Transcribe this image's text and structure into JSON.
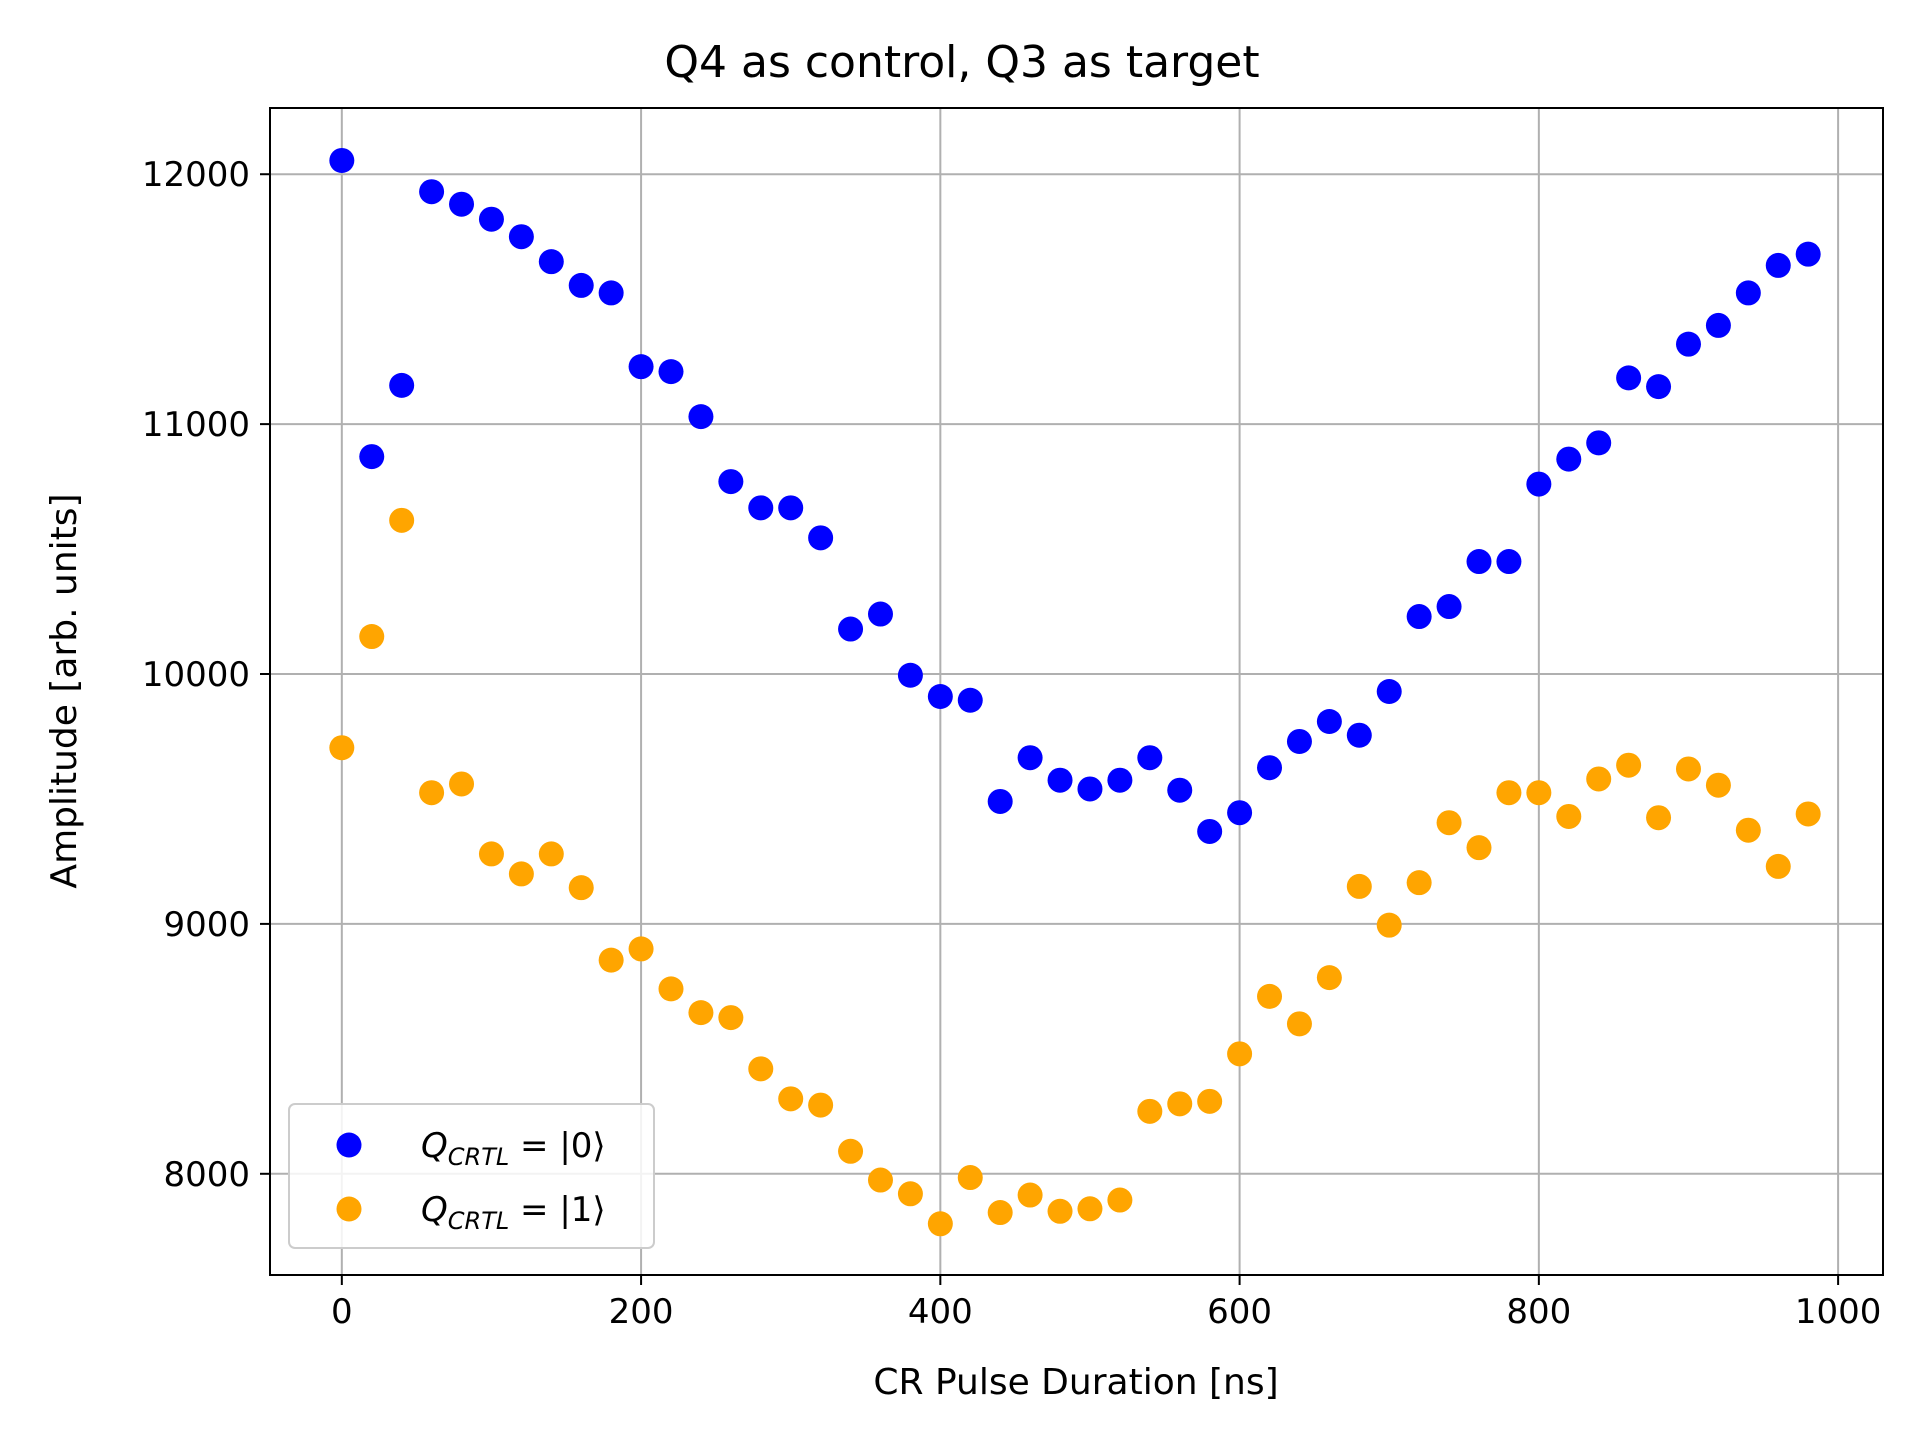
{
  "chart_data": {
    "type": "scatter",
    "title": "Q4 as control, Q3 as target",
    "xlabel": "CR Pulse Duration [ns]",
    "ylabel": "Amplitude [arb. units]",
    "xlim": [
      -48,
      1030
    ],
    "ylim": [
      7595,
      12265
    ],
    "xticks": [
      0,
      200,
      400,
      600,
      800,
      1000
    ],
    "yticks": [
      8000,
      9000,
      10000,
      11000,
      12000
    ],
    "grid": true,
    "legend_position": "lower-left",
    "series": [
      {
        "name": "Q_CRTL = |0⟩",
        "legend": {
          "q": "Q",
          "sub": "CRTL",
          "rest": " = |0⟩"
        },
        "color": "#0000ff",
        "x": [
          0,
          20,
          40,
          60,
          80,
          100,
          120,
          140,
          160,
          180,
          200,
          220,
          240,
          260,
          280,
          300,
          320,
          340,
          360,
          380,
          400,
          420,
          440,
          460,
          480,
          500,
          520,
          540,
          560,
          580,
          600,
          620,
          640,
          660,
          680,
          700,
          720,
          740,
          760,
          780,
          800,
          820,
          840,
          860,
          880,
          900,
          920,
          940,
          960,
          980
        ],
        "y": [
          12055,
          10870,
          11155,
          11930,
          11880,
          11820,
          11750,
          11650,
          11555,
          11525,
          11230,
          11210,
          11030,
          10770,
          10665,
          10665,
          10545,
          10180,
          10240,
          9995,
          9910,
          9895,
          9490,
          9665,
          9575,
          9540,
          9575,
          9665,
          9535,
          9370,
          9445,
          9625,
          9730,
          9810,
          9755,
          9930,
          10230,
          10270,
          10450,
          10450,
          10760,
          10860,
          10925,
          11185,
          11150,
          11320,
          11395,
          11525,
          11635,
          11680
        ]
      },
      {
        "name": "Q_CRTL = |1⟩",
        "legend": {
          "q": "Q",
          "sub": "CRTL",
          "rest": " = |1⟩"
        },
        "color": "#ffa500",
        "x": [
          0,
          20,
          40,
          60,
          80,
          100,
          120,
          140,
          160,
          180,
          200,
          220,
          240,
          260,
          280,
          300,
          320,
          340,
          360,
          380,
          400,
          420,
          440,
          460,
          480,
          500,
          520,
          540,
          560,
          580,
          600,
          620,
          640,
          660,
          680,
          700,
          720,
          740,
          760,
          780,
          800,
          820,
          840,
          860,
          880,
          900,
          920,
          940,
          960,
          980
        ],
        "y": [
          9705,
          10150,
          10615,
          9525,
          9560,
          9280,
          9200,
          9280,
          9145,
          8855,
          8900,
          8740,
          8645,
          8625,
          8420,
          8300,
          8275,
          8090,
          7975,
          7920,
          7800,
          7985,
          7845,
          7915,
          7850,
          7860,
          7895,
          8250,
          8280,
          8290,
          8480,
          8710,
          8600,
          8785,
          9150,
          8995,
          9165,
          9405,
          9305,
          9525,
          9525,
          9430,
          9580,
          9635,
          9425,
          9620,
          9555,
          9375,
          9230,
          9440
        ]
      }
    ]
  }
}
